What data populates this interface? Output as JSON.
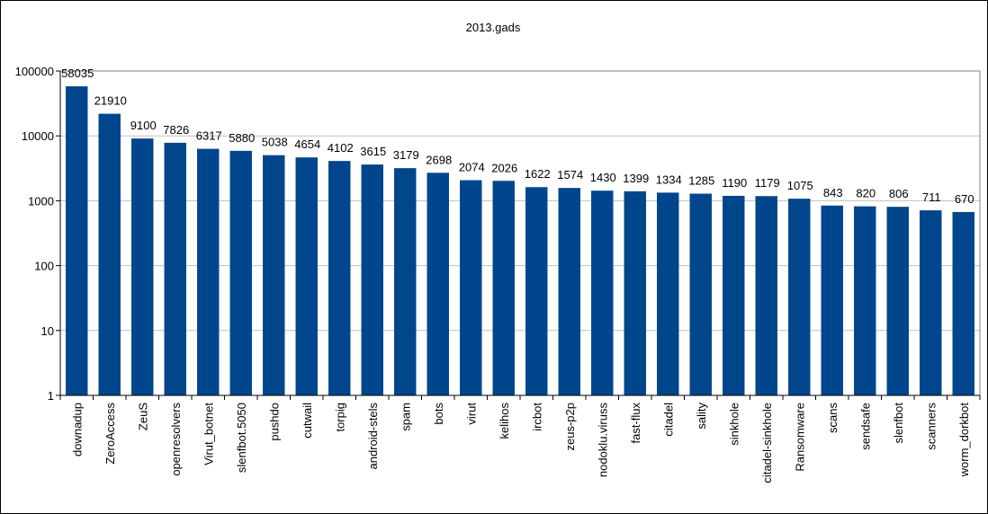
{
  "chart_data": {
    "type": "bar",
    "title": "2013.gads",
    "xlabel": "",
    "ylabel": "",
    "yscale": "log",
    "ylim": [
      1,
      100000
    ],
    "yticks": [
      "1",
      "10",
      "100",
      "1000",
      "10000",
      "100000"
    ],
    "grid": true,
    "bar_color": "#00468c",
    "categories": [
      "downadup",
      "ZeroAccess",
      "ZeuS",
      "openresolvers",
      "Virut_botnet",
      "slenfbot.5050",
      "pushdo",
      "cutwail",
      "torpig",
      "android-stels",
      "spam",
      "bots",
      "virut",
      "kelihos",
      "ircbot",
      "zeus-p2p",
      "nodoklu.viruss",
      "fast-flux",
      "citadel",
      "sality",
      "sinkhole",
      "citadel-sinkhole",
      "Ransomware",
      "scans",
      "sendsafe",
      "slenfbot",
      "scanners",
      "worm_dorkbot"
    ],
    "values": [
      58035,
      21910,
      9100,
      7826,
      6317,
      5880,
      5038,
      4654,
      4102,
      3615,
      3179,
      2698,
      2074,
      2026,
      1622,
      1574,
      1430,
      1399,
      1334,
      1285,
      1190,
      1179,
      1075,
      843,
      820,
      806,
      711,
      670
    ],
    "labels": [
      "58035",
      "21910",
      "9100",
      "7826",
      "6317",
      "5880",
      "5038",
      "4654",
      "4102",
      "3615",
      "3179",
      "2698",
      "2074",
      "2026",
      "1622",
      "1574",
      "1430",
      "1399",
      "1334",
      "1285",
      "1190",
      "1179",
      "1075",
      "843",
      "820",
      "806",
      "711",
      "670"
    ]
  }
}
